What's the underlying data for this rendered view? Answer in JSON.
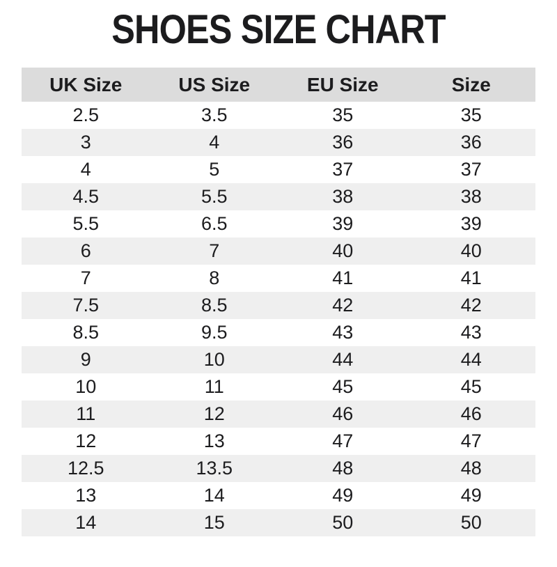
{
  "chart_data": {
    "type": "table",
    "title": "SHOES SIZE CHART",
    "columns": [
      "UK Size",
      "US Size",
      "EU Size",
      "Size"
    ],
    "rows": [
      [
        "2.5",
        "3.5",
        "35",
        "35"
      ],
      [
        "3",
        "4",
        "36",
        "36"
      ],
      [
        "4",
        "5",
        "37",
        "37"
      ],
      [
        "4.5",
        "5.5",
        "38",
        "38"
      ],
      [
        "5.5",
        "6.5",
        "39",
        "39"
      ],
      [
        "6",
        "7",
        "40",
        "40"
      ],
      [
        "7",
        "8",
        "41",
        "41"
      ],
      [
        "7.5",
        "8.5",
        "42",
        "42"
      ],
      [
        "8.5",
        "9.5",
        "43",
        "43"
      ],
      [
        "9",
        "10",
        "44",
        "44"
      ],
      [
        "10",
        "11",
        "45",
        "45"
      ],
      [
        "11",
        "12",
        "46",
        "46"
      ],
      [
        "12",
        "13",
        "47",
        "47"
      ],
      [
        "12.5",
        "13.5",
        "48",
        "48"
      ],
      [
        "13",
        "14",
        "49",
        "49"
      ],
      [
        "14",
        "15",
        "50",
        "50"
      ]
    ],
    "layout": {
      "stripes": "alternating, odd rows white, even rows gray",
      "alignment": "center"
    }
  },
  "colors": {
    "page_bg": "#ffffff",
    "header_bg": "#dcdcdc",
    "stripe_bg": "#efefef",
    "text_color": "#1c1c1e"
  }
}
